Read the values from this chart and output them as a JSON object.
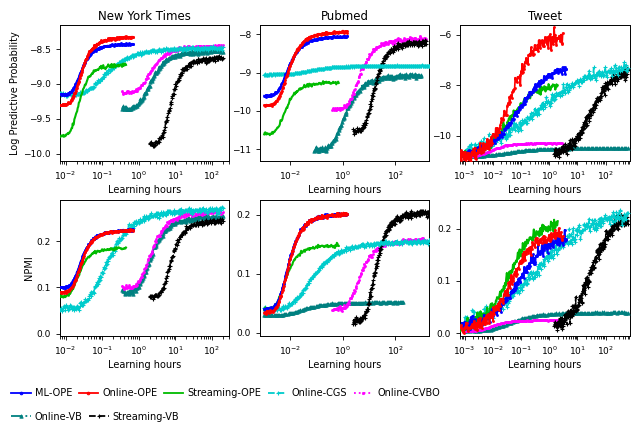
{
  "titles": [
    "New York Times",
    "Pubmed",
    "Tweet"
  ],
  "row_labels": [
    "Log Predictive Probability",
    "NPMI"
  ],
  "xlabel": "Learning hours",
  "methods": [
    "ML-OPE",
    "Online-OPE",
    "Streaming-OPE",
    "Online-CGS",
    "Online-CVBO",
    "Online-VB",
    "Streaming-VB"
  ],
  "colors": [
    "#0000FF",
    "#FF0000",
    "#00BB00",
    "#00CCCC",
    "#FF00FF",
    "#008080",
    "#000000"
  ],
  "xlims": [
    [
      [
        0.007,
        300
      ],
      [
        0.0007,
        2000
      ],
      [
        0.0007,
        700
      ]
    ],
    [
      [
        0.007,
        300
      ],
      [
        0.0007,
        2000
      ],
      [
        0.0007,
        700
      ]
    ]
  ],
  "ylims": [
    [
      [
        -10.1,
        -8.15
      ],
      [
        -11.3,
        -7.75
      ],
      [
        -11.0,
        -5.6
      ]
    ],
    [
      [
        -0.005,
        0.29
      ],
      [
        -0.005,
        0.225
      ],
      [
        -0.005,
        0.255
      ]
    ]
  ],
  "yticks": [
    [
      [
        -10,
        -9.5,
        -9.0,
        -8.5
      ],
      [
        -11,
        -10,
        -9,
        -8
      ],
      [
        -10,
        -8,
        -6
      ]
    ],
    [
      [
        0,
        0.1,
        0.2
      ],
      [
        0,
        0.1,
        0.2
      ],
      [
        0,
        0.1,
        0.2
      ]
    ]
  ]
}
